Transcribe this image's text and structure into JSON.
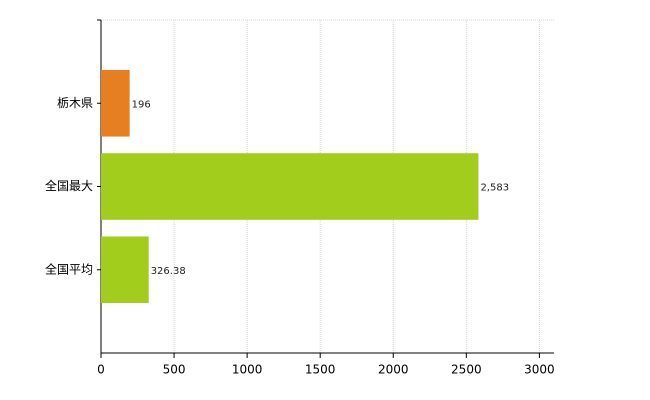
{
  "chart_data": {
    "type": "bar",
    "orientation": "horizontal",
    "categories": [
      "栃木県",
      "全国最大",
      "全国平均"
    ],
    "values": [
      196,
      2583,
      326.38
    ],
    "value_labels": [
      "196",
      "2,583",
      "326.38"
    ],
    "colors": [
      "#e67e22",
      "#a2cd1c",
      "#a2cd1c"
    ],
    "xlim": [
      0,
      3100
    ],
    "xticks": [
      0,
      500,
      1000,
      1500,
      2000,
      2500,
      3000
    ],
    "grid": true
  }
}
